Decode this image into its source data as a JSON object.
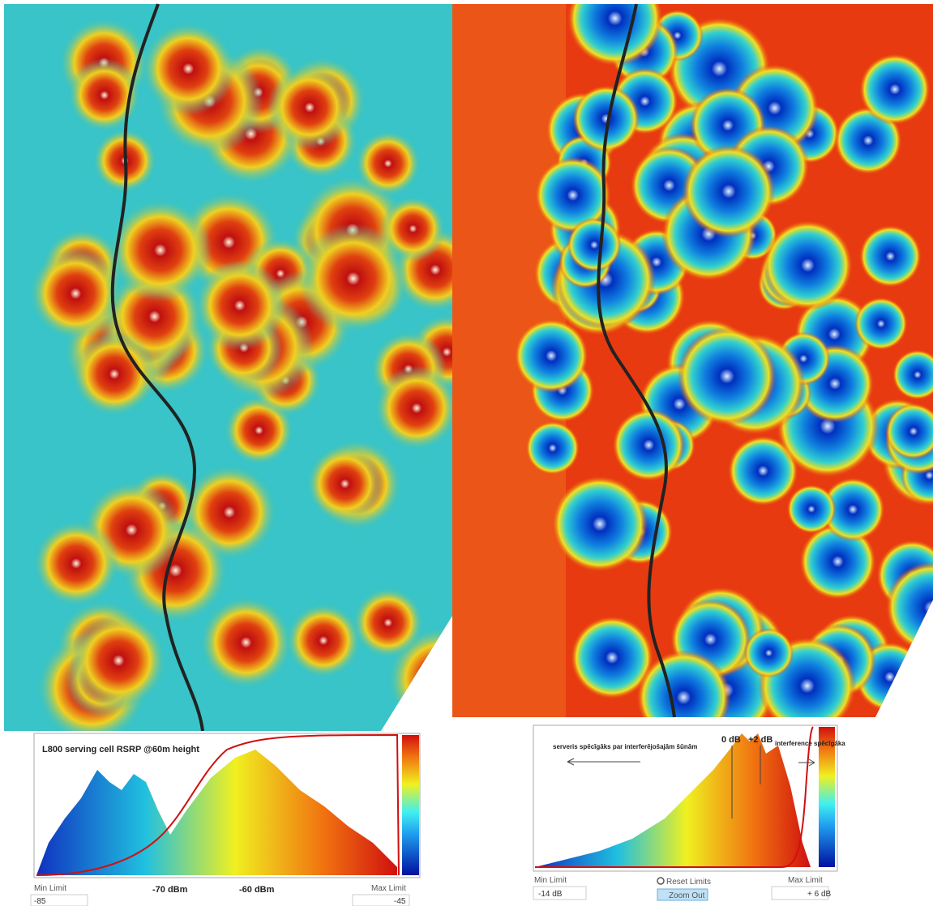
{
  "left_panel": {
    "title": "L800 serving cell RSRP @60m height",
    "axis_labels": [
      "-70 dBm",
      "-60 dBm"
    ],
    "min_limit_label": "Min Limit",
    "min_limit": "-85",
    "max_limit_label": "Max Limit",
    "max_limit": "-45"
  },
  "right_panel": {
    "annotation_left": "serveris spēcīgāks par interferējošajām šūnām",
    "marker_0": "0 dB",
    "marker_2": "+2 dB",
    "annotation_right": "interference spēcīgāka",
    "min_limit_label": "Min Limit",
    "min_limit": "-14 dB",
    "reset_button": "Reset Limits",
    "zoom_button": "Zoom Out",
    "max_limit_label": "Max Limit",
    "max_limit": "+ 6 dB"
  }
}
